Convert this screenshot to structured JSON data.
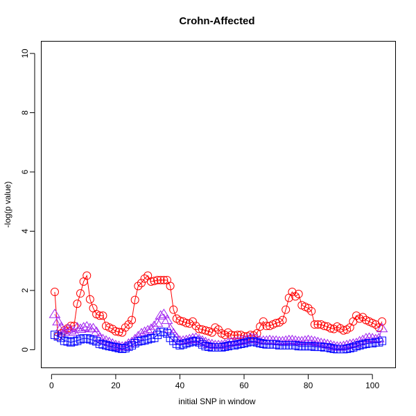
{
  "chart_data": {
    "type": "line",
    "title": "Crohn-Affected",
    "xlabel": "initial SNP in window",
    "ylabel": "-log(p value)",
    "xlim": [
      -3.1,
      107.1
    ],
    "ylim": [
      -0.6,
      10.4
    ],
    "xticks": [
      0,
      20,
      40,
      60,
      80,
      100
    ],
    "yticks": [
      0,
      2,
      4,
      6,
      8,
      10
    ],
    "x": [
      1,
      2,
      3,
      4,
      5,
      6,
      7,
      8,
      9,
      10,
      11,
      12,
      13,
      14,
      15,
      16,
      17,
      18,
      19,
      20,
      21,
      22,
      23,
      24,
      25,
      26,
      27,
      28,
      29,
      30,
      31,
      32,
      33,
      34,
      35,
      36,
      37,
      38,
      39,
      40,
      41,
      42,
      43,
      44,
      45,
      46,
      47,
      48,
      49,
      50,
      51,
      52,
      53,
      54,
      55,
      56,
      57,
      58,
      59,
      60,
      61,
      62,
      63,
      64,
      65,
      66,
      67,
      68,
      69,
      70,
      71,
      72,
      73,
      74,
      75,
      76,
      77,
      78,
      79,
      80,
      81,
      82,
      83,
      84,
      85,
      86,
      87,
      88,
      89,
      90,
      91,
      92,
      93,
      94,
      95,
      96,
      97,
      98,
      99,
      100,
      101,
      102,
      103
    ],
    "series": [
      {
        "marker": "circle",
        "color": "#ff0000",
        "values": [
          1.95,
          0.45,
          0.55,
          0.65,
          0.72,
          0.8,
          0.8,
          1.55,
          1.9,
          2.3,
          2.5,
          1.7,
          1.4,
          1.2,
          1.15,
          1.15,
          0.8,
          0.75,
          0.7,
          0.62,
          0.6,
          0.58,
          0.75,
          0.85,
          1.0,
          1.68,
          2.15,
          2.25,
          2.4,
          2.5,
          2.3,
          2.32,
          2.35,
          2.35,
          2.35,
          2.35,
          2.15,
          1.35,
          1.05,
          0.98,
          0.95,
          0.9,
          0.88,
          0.95,
          0.8,
          0.7,
          0.68,
          0.65,
          0.62,
          0.58,
          0.75,
          0.68,
          0.55,
          0.5,
          0.58,
          0.5,
          0.48,
          0.5,
          0.5,
          0.45,
          0.45,
          0.5,
          0.48,
          0.55,
          0.78,
          0.95,
          0.8,
          0.8,
          0.85,
          0.9,
          0.92,
          1.0,
          1.35,
          1.75,
          1.95,
          1.8,
          1.88,
          1.5,
          1.45,
          1.4,
          1.3,
          0.85,
          0.85,
          0.85,
          0.8,
          0.78,
          0.72,
          0.7,
          0.78,
          0.72,
          0.65,
          0.68,
          0.75,
          0.95,
          1.15,
          1.05,
          1.1,
          1.0,
          0.95,
          0.9,
          0.85,
          0.75,
          0.95
        ]
      },
      {
        "marker": "triangle",
        "color": "#a020f0",
        "values": [
          1.2,
          0.95,
          0.75,
          0.6,
          0.7,
          0.65,
          0.6,
          0.75,
          0.7,
          0.75,
          0.78,
          0.72,
          0.72,
          0.6,
          0.4,
          0.35,
          0.3,
          0.25,
          0.2,
          0.15,
          0.12,
          0.1,
          0.12,
          0.2,
          0.25,
          0.35,
          0.45,
          0.55,
          0.6,
          0.65,
          0.7,
          0.8,
          0.9,
          1.15,
          1.2,
          1.0,
          0.7,
          0.55,
          0.4,
          0.3,
          0.3,
          0.32,
          0.35,
          0.38,
          0.4,
          0.35,
          0.3,
          0.25,
          0.2,
          0.18,
          0.15,
          0.15,
          0.15,
          0.18,
          0.22,
          0.25,
          0.25,
          0.28,
          0.3,
          0.32,
          0.35,
          0.4,
          0.38,
          0.35,
          0.3,
          0.3,
          0.3,
          0.32,
          0.3,
          0.3,
          0.28,
          0.28,
          0.3,
          0.32,
          0.32,
          0.3,
          0.28,
          0.28,
          0.3,
          0.32,
          0.3,
          0.28,
          0.25,
          0.22,
          0.2,
          0.18,
          0.15,
          0.12,
          0.1,
          0.1,
          0.12,
          0.15,
          0.18,
          0.2,
          0.22,
          0.28,
          0.32,
          0.38,
          0.4,
          0.38,
          0.35,
          0.38,
          0.72
        ]
      },
      {
        "marker": "square",
        "color": "#0000ff",
        "values": [
          0.5,
          0.45,
          0.4,
          0.3,
          0.28,
          0.25,
          0.28,
          0.3,
          0.35,
          0.38,
          0.38,
          0.35,
          0.32,
          0.28,
          0.2,
          0.18,
          0.15,
          0.12,
          0.1,
          0.08,
          0.05,
          0.03,
          0.05,
          0.1,
          0.15,
          0.22,
          0.28,
          0.3,
          0.32,
          0.35,
          0.38,
          0.4,
          0.5,
          0.6,
          0.6,
          0.55,
          0.4,
          0.3,
          0.2,
          0.15,
          0.18,
          0.22,
          0.25,
          0.28,
          0.3,
          0.25,
          0.18,
          0.12,
          0.1,
          0.08,
          0.08,
          0.08,
          0.08,
          0.1,
          0.12,
          0.15,
          0.15,
          0.18,
          0.2,
          0.22,
          0.25,
          0.28,
          0.28,
          0.25,
          0.22,
          0.2,
          0.18,
          0.18,
          0.18,
          0.18,
          0.15,
          0.15,
          0.15,
          0.15,
          0.15,
          0.15,
          0.12,
          0.12,
          0.12,
          0.12,
          0.12,
          0.1,
          0.1,
          0.1,
          0.08,
          0.08,
          0.05,
          0.03,
          0.02,
          0.02,
          0.02,
          0.03,
          0.05,
          0.08,
          0.12,
          0.15,
          0.18,
          0.2,
          0.22,
          0.22,
          0.25,
          0.25,
          0.3
        ]
      }
    ]
  }
}
